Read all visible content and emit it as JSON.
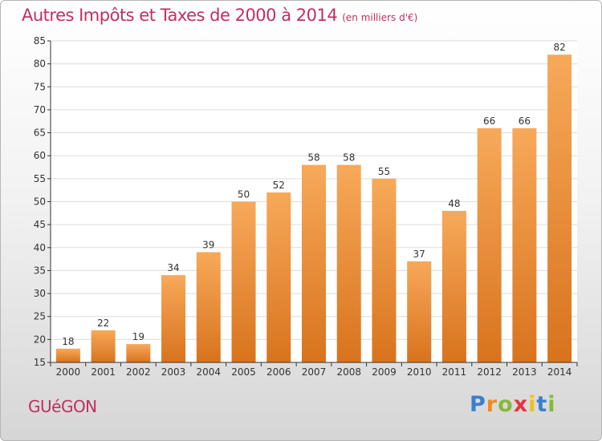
{
  "chart_data": {
    "type": "bar",
    "title": "Autres Impôts et Taxes de 2000 à 2014",
    "subtitle": "(en milliers d'€)",
    "categories": [
      "2000",
      "2001",
      "2002",
      "2003",
      "2004",
      "2005",
      "2006",
      "2007",
      "2008",
      "2009",
      "2010",
      "2011",
      "2012",
      "2013",
      "2014"
    ],
    "values": [
      18,
      22,
      19,
      34,
      39,
      50,
      52,
      58,
      58,
      55,
      37,
      48,
      66,
      66,
      82
    ],
    "data_labels": [
      "18",
      "22",
      "19",
      "34",
      "39",
      "50",
      "52",
      "58",
      "58",
      "55",
      "37",
      "48",
      "66",
      "66",
      "82"
    ],
    "ylim": [
      15,
      85
    ],
    "yticks": [
      15,
      20,
      25,
      30,
      35,
      40,
      45,
      50,
      55,
      60,
      65,
      70,
      75,
      80,
      85
    ],
    "grid": true,
    "xlabel": "",
    "ylabel": ""
  },
  "commune": "GUéGON",
  "logo": {
    "letters": [
      "P",
      "r",
      "o",
      "x",
      "i",
      "t",
      "i"
    ],
    "colors": [
      "#3a7fd0",
      "#f08a1c",
      "#88b83a",
      "#e8343a",
      "#f0c020",
      "#3a7fd0",
      "#88b83a"
    ]
  },
  "colors": {
    "title": "#c0305e",
    "bar_top": "#f7a95a",
    "bar_bottom": "#d8731d",
    "grid": "#dcdcdc",
    "axis": "#333333"
  }
}
